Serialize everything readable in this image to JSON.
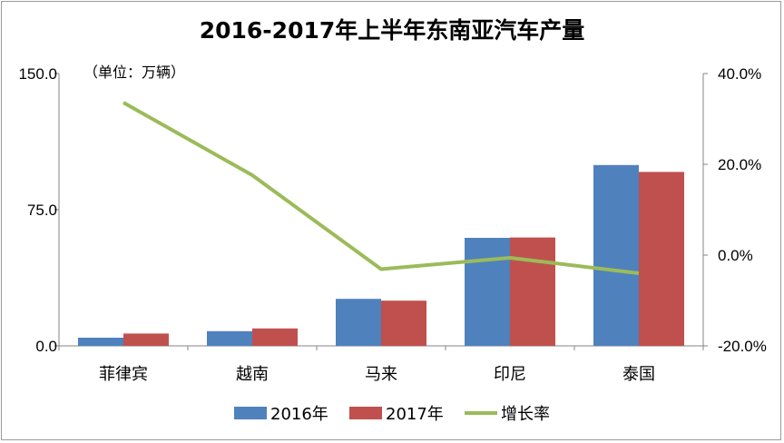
{
  "chart_data": {
    "type": "bar",
    "title": "2016-2017年上半年东南亚汽车产量",
    "subtitle": "（单位：万辆）",
    "categories": [
      "菲律宾",
      "越南",
      "马来",
      "印尼",
      "泰国"
    ],
    "series": [
      {
        "name": "2016年",
        "type": "bar",
        "axis": "left",
        "color": "#4f81bd",
        "values": [
          4.5,
          8.1,
          25.9,
          59.5,
          99.6
        ]
      },
      {
        "name": "2017年",
        "type": "bar",
        "axis": "left",
        "color": "#c0504d",
        "values": [
          6.8,
          9.6,
          24.9,
          59.7,
          95.8
        ]
      },
      {
        "name": "增长率",
        "type": "line",
        "axis": "right",
        "color": "#9bbb59",
        "values": [
          33.6,
          17.6,
          -3.1,
          -0.6,
          -4.0
        ]
      }
    ],
    "y_left": {
      "min": 0,
      "max": 150,
      "ticks": [
        0,
        75,
        150
      ],
      "tick_labels": [
        "0.0",
        "75.0",
        "150.0"
      ]
    },
    "y_right": {
      "min": -20,
      "max": 40,
      "ticks": [
        -20,
        0,
        20,
        40
      ],
      "tick_labels": [
        "-20.0%",
        "0.0%",
        "20.0%",
        "40.0%"
      ]
    },
    "grid": false,
    "legend": "bottom"
  }
}
